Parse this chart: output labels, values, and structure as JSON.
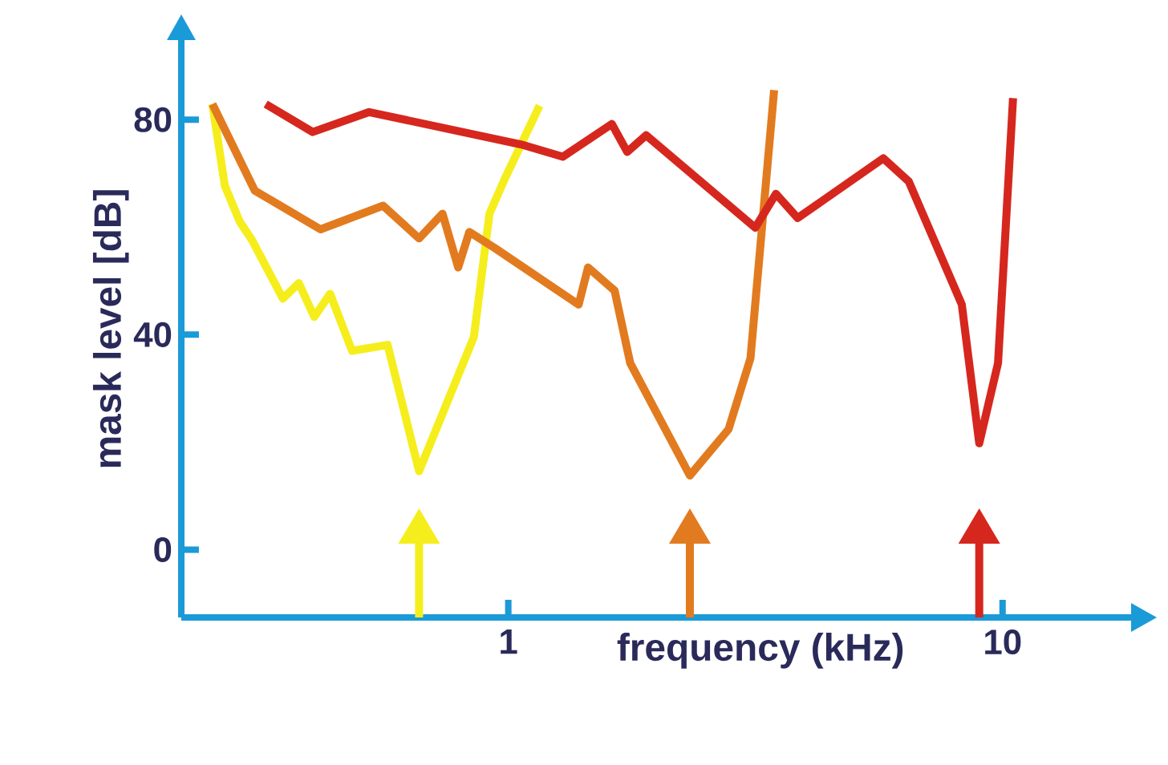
{
  "chart_data": {
    "type": "line",
    "xlabel": "frequency (kHz)",
    "ylabel": "mask level [dB]",
    "log": "x",
    "xlim": [
      0.218,
      18.2
    ],
    "ylim": [
      -12.6,
      94.8
    ],
    "xticks": [
      1,
      10
    ],
    "yticks": [
      0,
      40,
      80
    ],
    "grid": false,
    "legend": false,
    "marker": "none",
    "line_style": "solid",
    "series": [
      {
        "color": "#f5ee1c",
        "x": [
          0.252,
          0.267,
          0.286,
          0.303,
          0.35,
          0.377,
          0.405,
          0.436,
          0.483,
          0.57,
          0.66,
          0.852,
          0.916,
          0.985,
          1.157
        ],
        "values": [
          82.9,
          67.7,
          61.1,
          57.6,
          46.7,
          49.6,
          43.3,
          47.6,
          37.0,
          38.1,
          14.6,
          39.6,
          62.5,
          69.1,
          82.6
        ]
      },
      {
        "color": "#e27b1f",
        "x": [
          0.252,
          0.307,
          0.417,
          0.558,
          0.66,
          0.736,
          0.792,
          0.834,
          0.936,
          1.388,
          1.45,
          1.641,
          1.765,
          2.33,
          2.79,
          3.09,
          3.45
        ],
        "values": [
          82.9,
          66.8,
          59.6,
          64.0,
          57.9,
          62.5,
          52.5,
          59.1,
          56.2,
          45.6,
          52.5,
          48.2,
          34.7,
          13.8,
          22.4,
          35.6,
          85.5
        ]
      },
      {
        "color": "#d6271e",
        "x": [
          0.323,
          0.402,
          0.523,
          1.06,
          1.29,
          1.62,
          1.74,
          1.9,
          3.16,
          3.48,
          3.85,
          5.74,
          6.46,
          8.27,
          8.97,
          9.79,
          10.5
        ],
        "values": [
          82.9,
          77.7,
          81.4,
          75.4,
          73.1,
          79.2,
          74.0,
          77.1,
          59.9,
          66.2,
          61.7,
          72.8,
          68.5,
          45.6,
          19.8,
          34.7,
          84.0
        ]
      }
    ]
  }
}
